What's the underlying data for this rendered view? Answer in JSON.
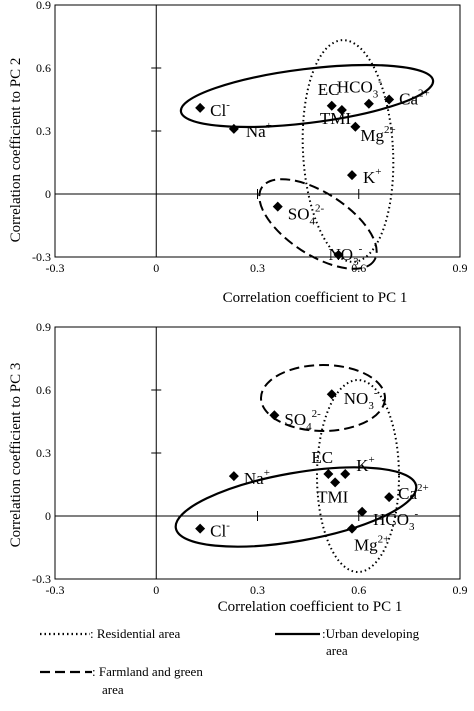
{
  "legend": {
    "residential": ": Residential area",
    "urban_line1": ":Urban developing",
    "urban_line2": "area",
    "farmland_line1": ": Farmland and green",
    "farmland_line2": "area"
  },
  "chart_data": [
    {
      "type": "scatter",
      "title": "",
      "xlabel": "Correlation coefficient to PC 1",
      "ylabel": "Correlation coefficient to PC 2",
      "xlim": [
        -0.3,
        0.9
      ],
      "ylim": [
        -0.3,
        0.9
      ],
      "xticks": [
        "-0.3",
        "0",
        "0.3",
        "0.6",
        "0.9"
      ],
      "yticks": [
        "-0.3",
        "0",
        "0.3",
        "0.6",
        "0.9"
      ],
      "grid": false,
      "points": [
        {
          "label": "Cl",
          "sup": "-",
          "sub": "",
          "x": 0.13,
          "y": 0.41
        },
        {
          "label": "Na",
          "sup": "+",
          "sub": "",
          "x": 0.23,
          "y": 0.31
        },
        {
          "label": "EC",
          "sup": "",
          "sub": "",
          "x": 0.52,
          "y": 0.42
        },
        {
          "label": "TMI",
          "sup": "",
          "sub": "",
          "x": 0.55,
          "y": 0.4
        },
        {
          "label": "HCO",
          "sup": "-",
          "sub": "3",
          "x": 0.63,
          "y": 0.43
        },
        {
          "label": "Ca",
          "sup": "2+",
          "sub": "",
          "x": 0.69,
          "y": 0.45
        },
        {
          "label": "Mg",
          "sup": "2+",
          "sub": "",
          "x": 0.59,
          "y": 0.32
        },
        {
          "label": "K",
          "sup": "+",
          "sub": "",
          "x": 0.58,
          "y": 0.09
        },
        {
          "label": "SO",
          "sup": "2-",
          "sub": "4",
          "x": 0.36,
          "y": -0.06
        },
        {
          "label": "NO",
          "sup": "-",
          "sub": "3",
          "x": 0.54,
          "y": -0.29
        }
      ],
      "groups": [
        {
          "name": "Urban developing area",
          "style": "solid"
        },
        {
          "name": "Residential area",
          "style": "dotted"
        },
        {
          "name": "Farmland and green area",
          "style": "dashed"
        }
      ]
    },
    {
      "type": "scatter",
      "title": "",
      "xlabel": "Correlation coefficient to PC 1",
      "ylabel": "Correlation coefficient to PC 3",
      "xlim": [
        -0.3,
        0.9
      ],
      "ylim": [
        -0.3,
        0.9
      ],
      "xticks": [
        "-0.3",
        "0",
        "0.3",
        "0.6",
        "0.9"
      ],
      "yticks": [
        "-0.3",
        "0",
        "0.3",
        "0.6",
        "0.9"
      ],
      "grid": false,
      "points": [
        {
          "label": "Cl",
          "sup": "-",
          "sub": "",
          "x": 0.13,
          "y": -0.06
        },
        {
          "label": "Na",
          "sup": "+",
          "sub": "",
          "x": 0.23,
          "y": 0.19
        },
        {
          "label": "EC",
          "sup": "",
          "sub": "",
          "x": 0.51,
          "y": 0.2
        },
        {
          "label": "TMI",
          "sup": "",
          "sub": "",
          "x": 0.53,
          "y": 0.16
        },
        {
          "label": "K",
          "sup": "+",
          "sub": "",
          "x": 0.56,
          "y": 0.2
        },
        {
          "label": "Ca",
          "sup": "2+",
          "sub": "",
          "x": 0.69,
          "y": 0.09
        },
        {
          "label": "HCO",
          "sup": "-",
          "sub": "3",
          "x": 0.61,
          "y": 0.02
        },
        {
          "label": "Mg",
          "sup": "2+",
          "sub": "",
          "x": 0.58,
          "y": -0.06
        },
        {
          "label": "SO",
          "sup": "2-",
          "sub": "4",
          "x": 0.35,
          "y": 0.48
        },
        {
          "label": "NO",
          "sup": "-",
          "sub": "3",
          "x": 0.52,
          "y": 0.58
        }
      ],
      "groups": [
        {
          "name": "Urban developing area",
          "style": "solid"
        },
        {
          "name": "Residential area",
          "style": "dotted"
        },
        {
          "name": "Farmland and green area",
          "style": "dashed"
        }
      ]
    }
  ]
}
